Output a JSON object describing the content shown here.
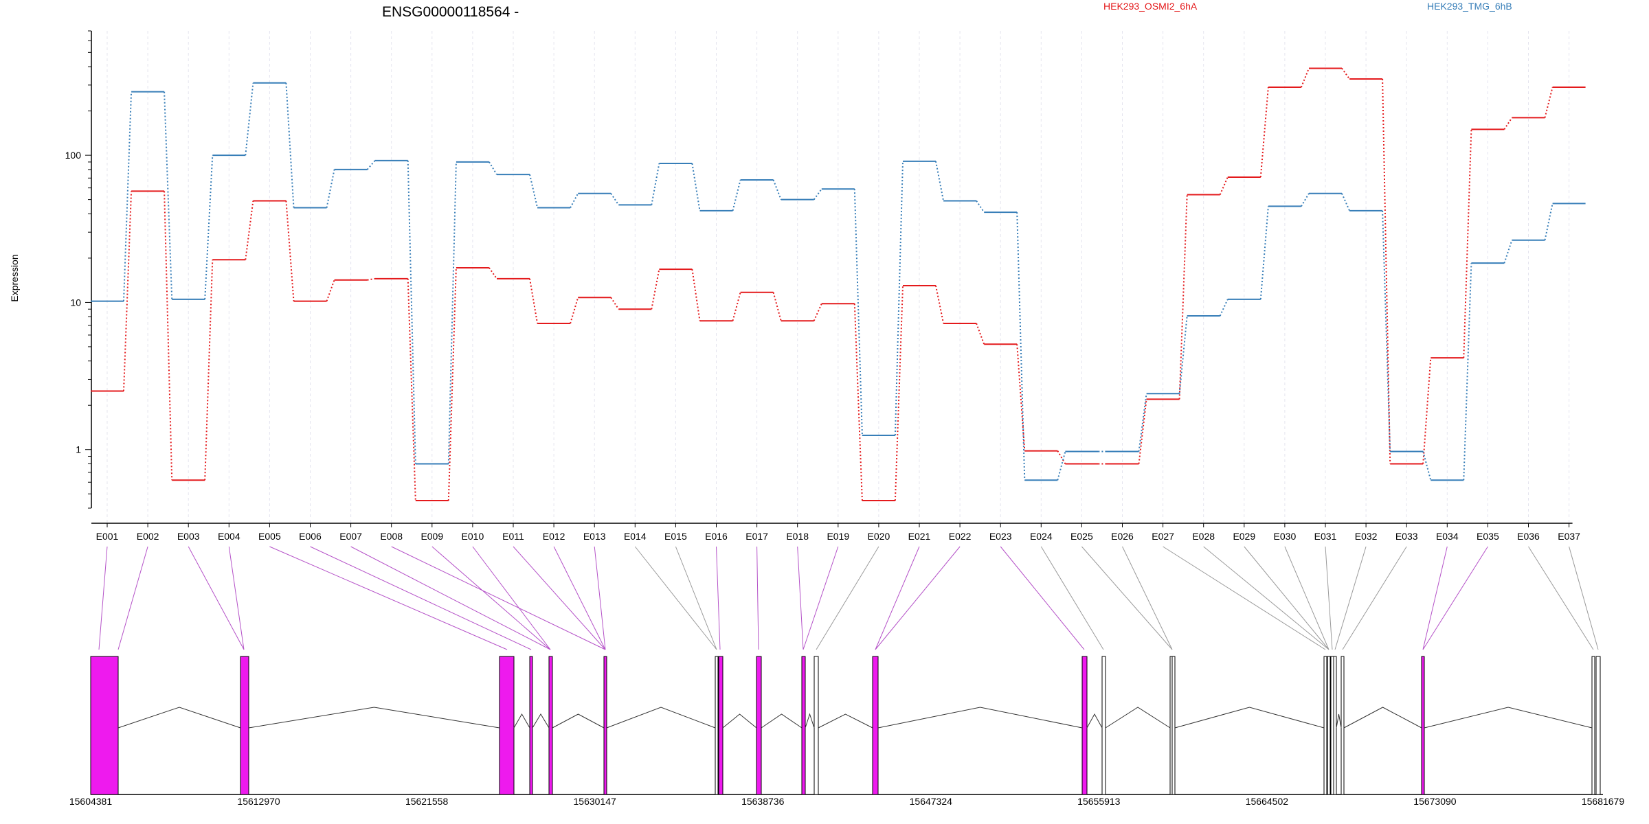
{
  "chart_data": {
    "type": "line",
    "title": "ENSG00000118564 -",
    "ylabel": "Expression",
    "xlabel": "",
    "yscale": "log",
    "yticks": [
      1,
      10,
      100
    ],
    "ylim": [
      0.4,
      700
    ],
    "grid": "vertical dashed per exon",
    "legend": "top, inline labels",
    "categories": [
      "E001",
      "E002",
      "E003",
      "E004",
      "E005",
      "E006",
      "E007",
      "E008",
      "E009",
      "E010",
      "E011",
      "E012",
      "E013",
      "E014",
      "E015",
      "E016",
      "E017",
      "E018",
      "E019",
      "E020",
      "E021",
      "E022",
      "E023",
      "E024",
      "E025",
      "E026",
      "E027",
      "E028",
      "E029",
      "E030",
      "E031",
      "E032",
      "E033",
      "E034",
      "E035",
      "E036",
      "E037"
    ],
    "series": [
      {
        "name": "HEK293_OSMI2_6hA",
        "color": "#e41a1c",
        "values": [
          2.5,
          57,
          0.62,
          19.5,
          49,
          10.2,
          14.2,
          14.5,
          0.45,
          17.2,
          14.5,
          7.2,
          10.8,
          9,
          16.8,
          7.5,
          11.7,
          7.5,
          9.8,
          0.45,
          13,
          7.2,
          5.2,
          0.98,
          0.8,
          0.8,
          2.2,
          54,
          71,
          290,
          390,
          330,
          0.8,
          4.2,
          150,
          180,
          290
        ]
      },
      {
        "name": "HEK293_TMG_6hB",
        "color": "#377eb8",
        "values": [
          10.2,
          270,
          10.5,
          100,
          310,
          44,
          80,
          92,
          0.8,
          90,
          74,
          44,
          55,
          46,
          88,
          42,
          68,
          50,
          59,
          1.25,
          91,
          49,
          41,
          0.62,
          0.97,
          0.97,
          2.4,
          8.1,
          10.5,
          45,
          55,
          42,
          0.97,
          0.62,
          18.5,
          26.5,
          47
        ]
      }
    ]
  },
  "gene_model": {
    "genomic_ticks": [
      "15604381",
      "15612970",
      "15621558",
      "15630147",
      "15638736",
      "15647324",
      "15655913",
      "15664502",
      "15673090",
      "15681679"
    ],
    "exon_colors": {
      "differential": "#ee1aee",
      "other": "#ffffff"
    }
  }
}
